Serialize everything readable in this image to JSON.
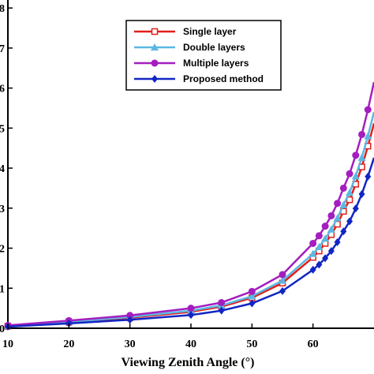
{
  "chart_data": {
    "type": "line",
    "xlabel": "Viewing Zenith Angle (°)",
    "ylabel": "",
    "xlim": [
      10,
      70
    ],
    "ylim": [
      0,
      8.2
    ],
    "xticks": [
      10,
      20,
      30,
      40,
      50,
      60
    ],
    "yticks": [
      0,
      1,
      2,
      3,
      4,
      5,
      6,
      7,
      8
    ],
    "grid": false,
    "legend_position": "top-center",
    "x": [
      10,
      20,
      30,
      40,
      45,
      50,
      55,
      60,
      61,
      62,
      63,
      64,
      65,
      66,
      67,
      68,
      69,
      70
    ],
    "series": [
      {
        "name": "Single layer",
        "color": "#e0201b",
        "marker": "square-open",
        "values": [
          0.05,
          0.15,
          0.26,
          0.41,
          0.54,
          0.76,
          1.13,
          1.77,
          1.93,
          2.12,
          2.34,
          2.6,
          2.92,
          3.21,
          3.6,
          4.03,
          4.55,
          5.12
        ]
      },
      {
        "name": "Double layers",
        "color": "#5bb7e3",
        "marker": "triangle-filled",
        "values": [
          0.06,
          0.16,
          0.28,
          0.44,
          0.57,
          0.8,
          1.19,
          1.86,
          2.03,
          2.24,
          2.47,
          2.75,
          3.08,
          3.39,
          3.8,
          4.26,
          4.8,
          5.4
        ]
      },
      {
        "name": "Multiple layers",
        "color": "#a41ebf",
        "marker": "circle-filled",
        "values": [
          0.07,
          0.19,
          0.32,
          0.5,
          0.64,
          0.92,
          1.34,
          2.12,
          2.31,
          2.55,
          2.81,
          3.12,
          3.5,
          3.86,
          4.32,
          4.84,
          5.46,
          6.15
        ]
      },
      {
        "name": "Proposed method",
        "color": "#1226c4",
        "marker": "diamond-filled",
        "values": [
          0.04,
          0.12,
          0.21,
          0.33,
          0.44,
          0.62,
          0.93,
          1.46,
          1.59,
          1.75,
          1.93,
          2.15,
          2.42,
          2.67,
          2.99,
          3.35,
          3.79,
          4.26
        ]
      }
    ]
  }
}
